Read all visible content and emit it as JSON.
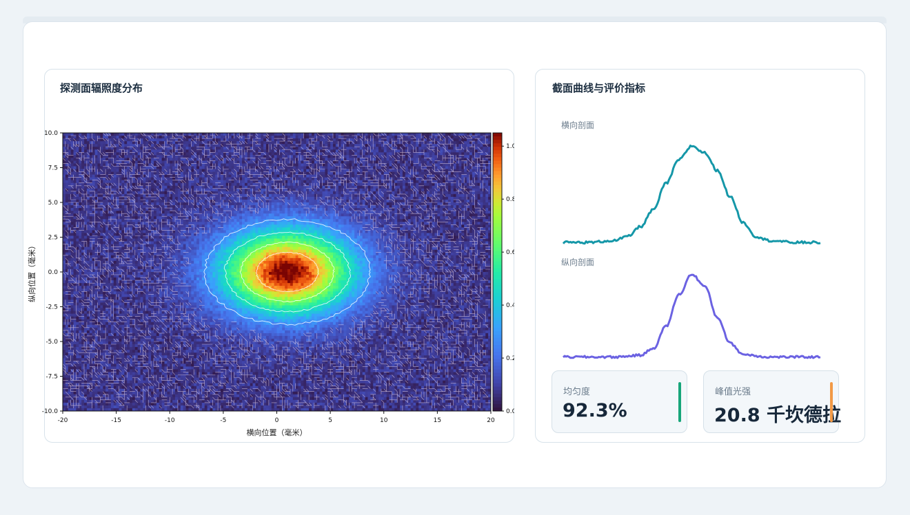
{
  "left_panel": {
    "title": "探测面辐照度分布"
  },
  "right_panel": {
    "title": "截面曲线与评价指标",
    "profile_h_label": "横向剖面",
    "profile_v_label": "纵向剖面"
  },
  "metrics": [
    {
      "label": "均匀度",
      "value": "92.3%",
      "accent": "#17a67a"
    },
    {
      "label": "峰值光强",
      "value": "20.8 千坎德拉",
      "accent": "#f29a46"
    }
  ],
  "chart_data": [
    {
      "type": "heatmap",
      "xlabel": "横向位置（毫米）",
      "ylabel": "纵向位置（毫米）",
      "xlim": [
        -20,
        20
      ],
      "ylim": [
        -10,
        10
      ],
      "xticks": [
        "-20",
        "-15",
        "-10",
        "-5",
        "0",
        "5",
        "10",
        "15",
        "20"
      ],
      "yticks": [
        "10.0",
        "7.5",
        "5.0",
        "2.5",
        "0.0",
        "-2.5",
        "-5.0",
        "-7.5",
        "-10.0"
      ],
      "colorbar": {
        "range": [
          0,
          1.05
        ],
        "ticks": [
          "1.0",
          "0.8",
          "0.6",
          "0.4",
          "0.2",
          "0.0"
        ]
      },
      "center": [
        1.0,
        0.0
      ],
      "sigma_x": 4.3,
      "sigma_y": 2.1,
      "peak": 1.0,
      "noise_floor": 0.08,
      "contour_levels": [
        0.2,
        0.4,
        0.6,
        0.8
      ],
      "colormap": "turbo"
    },
    {
      "type": "line",
      "name": "横向剖面",
      "color": "#1597a8",
      "x": [
        -20,
        -16,
        -12,
        -10,
        -8,
        -6,
        -4,
        -2,
        0,
        2,
        4,
        6,
        8,
        10,
        12,
        16,
        20
      ],
      "y": [
        0.02,
        0.02,
        0.04,
        0.08,
        0.18,
        0.35,
        0.62,
        0.86,
        1.0,
        0.93,
        0.75,
        0.48,
        0.22,
        0.08,
        0.04,
        0.02,
        0.02
      ]
    },
    {
      "type": "line",
      "name": "纵向剖面",
      "color": "#6b62e2",
      "x": [
        -10,
        -8,
        -6,
        -4,
        -3,
        -2,
        -1,
        0,
        1,
        2,
        3,
        4,
        6,
        8,
        10
      ],
      "y": [
        0.02,
        0.02,
        0.02,
        0.04,
        0.12,
        0.38,
        0.75,
        0.99,
        0.85,
        0.48,
        0.18,
        0.05,
        0.02,
        0.02,
        0.02
      ]
    }
  ]
}
